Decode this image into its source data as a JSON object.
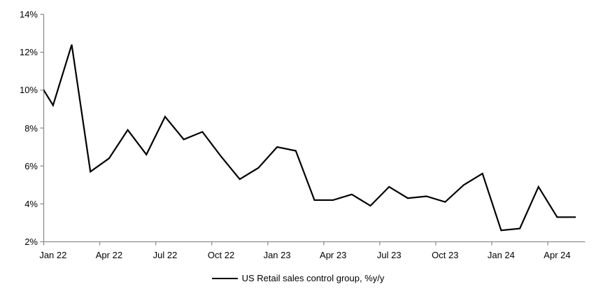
{
  "chart_data": {
    "type": "line",
    "title": "",
    "legend": "US Retail sales control group, %y/y",
    "categories": [
      "Dec 21",
      "Jan 22",
      "Feb 22",
      "Mar 22",
      "Apr 22",
      "May 22",
      "Jun 22",
      "Jul 22",
      "Aug 22",
      "Sep 22",
      "Oct 22",
      "Nov 22",
      "Dec 22",
      "Jan 23",
      "Feb 23",
      "Mar 23",
      "Apr 23",
      "May 23",
      "Jun 23",
      "Jul 23",
      "Aug 23",
      "Sep 23",
      "Oct 23",
      "Nov 23",
      "Dec 23",
      "Jan 24",
      "Feb 24",
      "Mar 24",
      "Apr 24",
      "May 24"
    ],
    "series": [
      {
        "name": "US Retail sales control group, %y/y",
        "values": [
          10.8,
          9.2,
          12.4,
          5.7,
          6.4,
          7.9,
          6.6,
          8.6,
          7.4,
          7.8,
          6.5,
          5.3,
          5.9,
          7.0,
          6.8,
          4.2,
          4.2,
          4.5,
          3.9,
          4.9,
          4.3,
          4.4,
          4.1,
          5.0,
          5.6,
          2.6,
          2.7,
          4.9,
          3.3,
          3.3
        ]
      }
    ],
    "x_axis_start": "Jan 22",
    "x_tick_labels": [
      "Jan 22",
      "Apr 22",
      "Jul 22",
      "Oct 22",
      "Jan 23",
      "Apr 23",
      "Jul 23",
      "Oct 23",
      "Jan 24",
      "Apr 24"
    ],
    "x_tick_interval_months": 3,
    "y_tick_labels": [
      "2%",
      "4%",
      "6%",
      "8%",
      "10%",
      "12%",
      "14%"
    ],
    "ylim": [
      2,
      14
    ],
    "xlabel": "",
    "ylabel": "",
    "grid": false,
    "legend_position": "bottom-center",
    "line_color": "#000000",
    "axis_color": "#8e8e8e",
    "text_color": "#000000"
  }
}
